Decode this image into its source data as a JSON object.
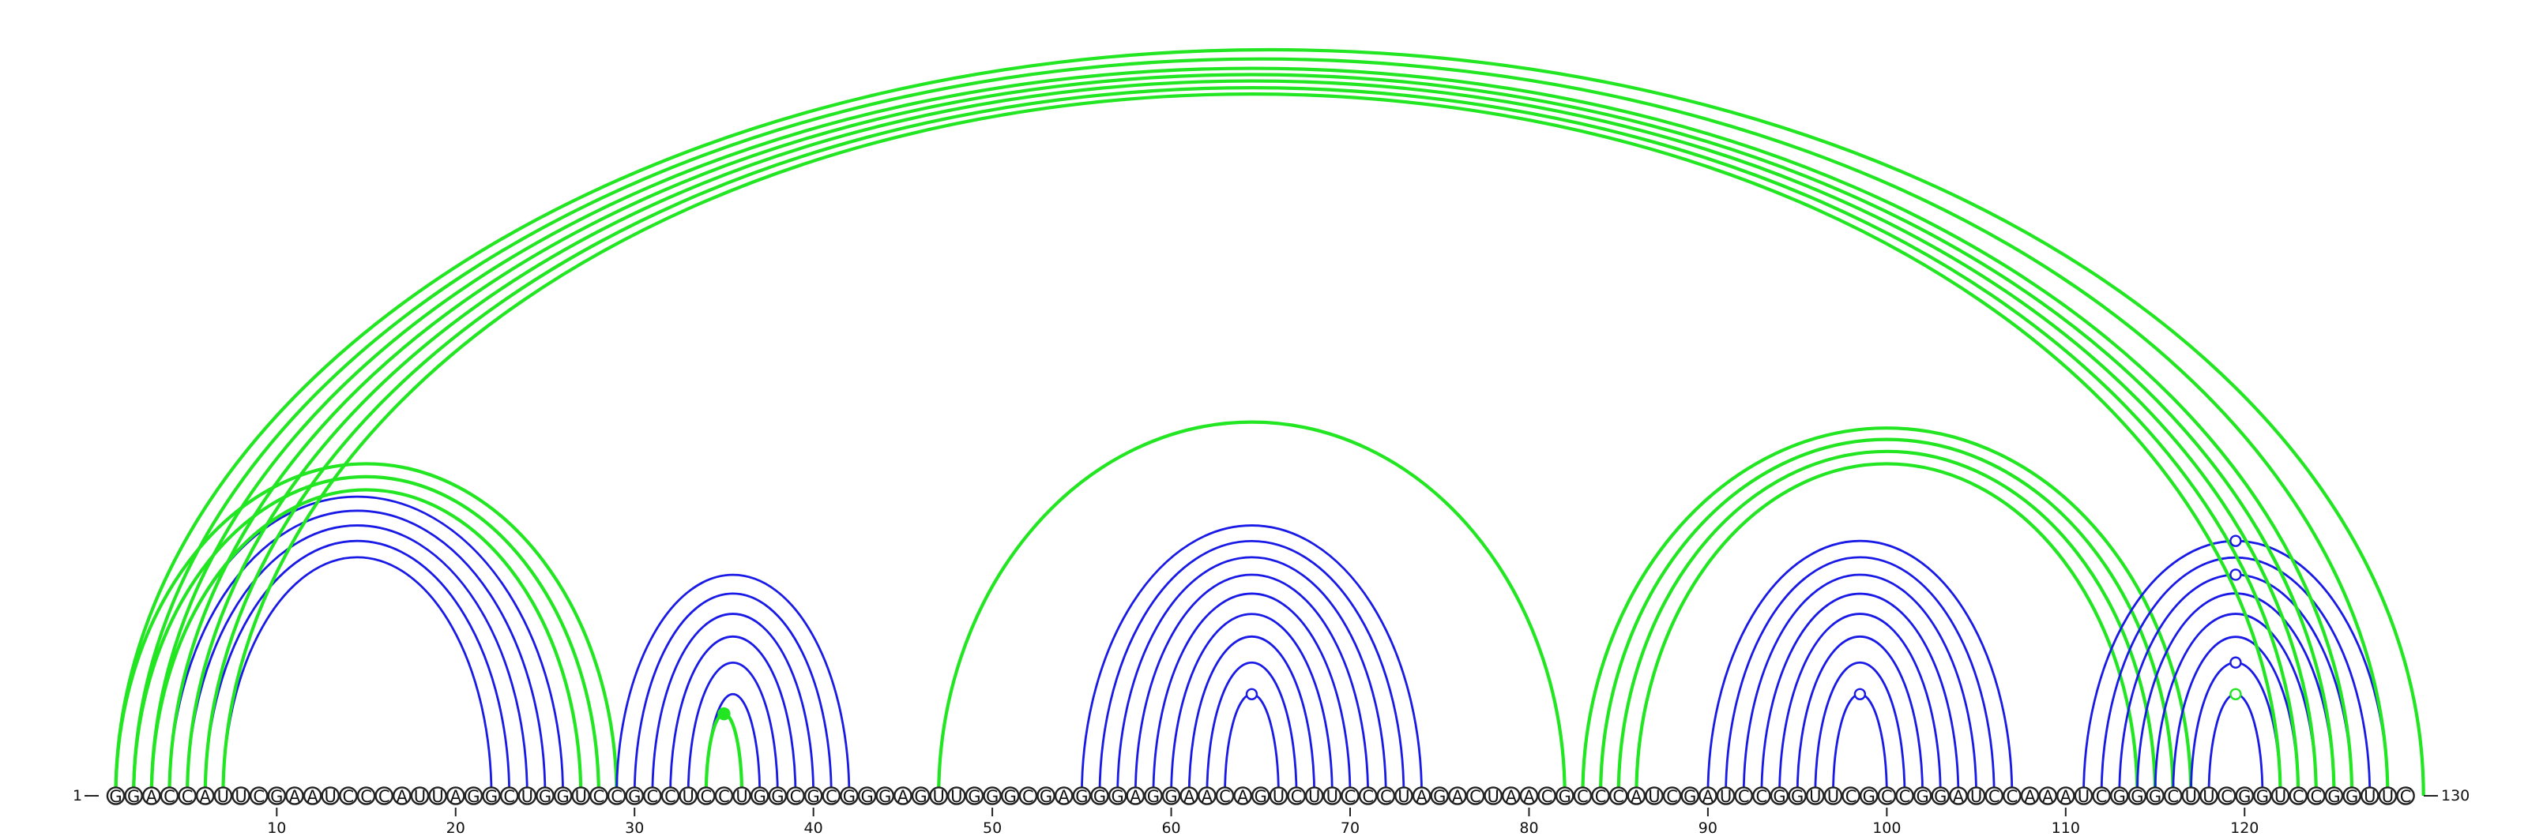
{
  "sequence": "GGACCAUUCGAAUCCCAUUAGGCUGGUCCGCCUCCUGGCGCGGGAGUUGGGCGAGGGAGGAACAGUCUUCCCUAGACUAACGCCCAUCGAUCCGGUUCGCCGGAUCCAAAUCGGGCUUCGGUCCGGUUC",
  "start_label": "1",
  "end_label": "130",
  "tick_labels": [
    "10",
    "20",
    "30",
    "40",
    "50",
    "60",
    "70",
    "80",
    "90",
    "100",
    "110",
    "120"
  ],
  "tick_positions": [
    10,
    20,
    30,
    40,
    50,
    60,
    70,
    80,
    90,
    100,
    110,
    120
  ],
  "colors": {
    "blue": "#1a1ae6",
    "green": "#22e622",
    "outline": "#222222"
  },
  "chart_data": {
    "type": "arc-diagram",
    "sequence_length": 130,
    "arcs": [
      {
        "color": "blue",
        "i": 5,
        "j": 24
      },
      {
        "color": "blue",
        "i": 6,
        "j": 23
      },
      {
        "color": "blue",
        "i": 7,
        "j": 22
      },
      {
        "color": "blue",
        "i": 4,
        "j": 25
      },
      {
        "color": "blue",
        "i": 3,
        "j": 26
      },
      {
        "color": "green",
        "i": 2,
        "j": 28
      },
      {
        "color": "green",
        "i": 1,
        "j": 29
      },
      {
        "color": "green",
        "i": 3,
        "j": 27
      },
      {
        "color": "blue",
        "i": 29,
        "j": 42
      },
      {
        "color": "blue",
        "i": 30,
        "j": 41
      },
      {
        "color": "blue",
        "i": 31,
        "j": 40
      },
      {
        "color": "blue",
        "i": 32,
        "j": 39
      },
      {
        "color": "blue",
        "i": 33,
        "j": 38
      },
      {
        "color": "blue",
        "i": 34,
        "j": 37
      },
      {
        "color": "green",
        "i": 34,
        "j": 36
      },
      {
        "color": "green",
        "i": 47,
        "j": 82
      },
      {
        "color": "blue",
        "i": 55,
        "j": 74
      },
      {
        "color": "blue",
        "i": 56,
        "j": 73
      },
      {
        "color": "blue",
        "i": 57,
        "j": 72
      },
      {
        "color": "blue",
        "i": 58,
        "j": 71
      },
      {
        "color": "blue",
        "i": 59,
        "j": 70
      },
      {
        "color": "blue",
        "i": 60,
        "j": 69
      },
      {
        "color": "blue",
        "i": 61,
        "j": 68
      },
      {
        "color": "blue",
        "i": 62,
        "j": 67
      },
      {
        "color": "blue",
        "i": 63,
        "j": 66
      },
      {
        "color": "blue",
        "i": 90,
        "j": 107
      },
      {
        "color": "blue",
        "i": 91,
        "j": 106
      },
      {
        "color": "blue",
        "i": 92,
        "j": 105
      },
      {
        "color": "blue",
        "i": 93,
        "j": 104
      },
      {
        "color": "blue",
        "i": 94,
        "j": 103
      },
      {
        "color": "blue",
        "i": 95,
        "j": 102
      },
      {
        "color": "blue",
        "i": 96,
        "j": 101
      },
      {
        "color": "blue",
        "i": 97,
        "j": 100
      },
      {
        "color": "green",
        "i": 83,
        "j": 117
      },
      {
        "color": "green",
        "i": 84,
        "j": 116
      },
      {
        "color": "green",
        "i": 85,
        "j": 115
      },
      {
        "color": "green",
        "i": 86,
        "j": 114
      },
      {
        "color": "blue",
        "i": 111,
        "j": 128
      },
      {
        "color": "blue",
        "i": 112,
        "j": 127
      },
      {
        "color": "blue",
        "i": 113,
        "j": 126
      },
      {
        "color": "blue",
        "i": 114,
        "j": 125
      },
      {
        "color": "blue",
        "i": 115,
        "j": 124
      },
      {
        "color": "blue",
        "i": 116,
        "j": 123
      },
      {
        "color": "blue",
        "i": 117,
        "j": 122
      },
      {
        "color": "blue",
        "i": 118,
        "j": 121
      },
      {
        "color": "green",
        "i": 1,
        "j": 130
      },
      {
        "color": "green",
        "i": 2,
        "j": 128
      },
      {
        "color": "green",
        "i": 3,
        "j": 126
      },
      {
        "color": "green",
        "i": 4,
        "j": 125
      },
      {
        "color": "green",
        "i": 5,
        "j": 124
      },
      {
        "color": "green",
        "i": 6,
        "j": 123
      },
      {
        "color": "green",
        "i": 7,
        "j": 122
      }
    ],
    "markers": [
      {
        "color": "green",
        "style": "filled",
        "arc_index": 14
      },
      {
        "color": "blue",
        "style": "open",
        "arc_index": 24
      },
      {
        "color": "blue",
        "style": "open",
        "arc_index": 32
      },
      {
        "color": "blue",
        "style": "open",
        "arc_index": 37
      },
      {
        "color": "blue",
        "style": "open",
        "arc_index": 39
      },
      {
        "color": "blue",
        "style": "open",
        "arc_index": 43
      },
      {
        "color": "green",
        "style": "open",
        "arc_index": 44
      }
    ]
  }
}
